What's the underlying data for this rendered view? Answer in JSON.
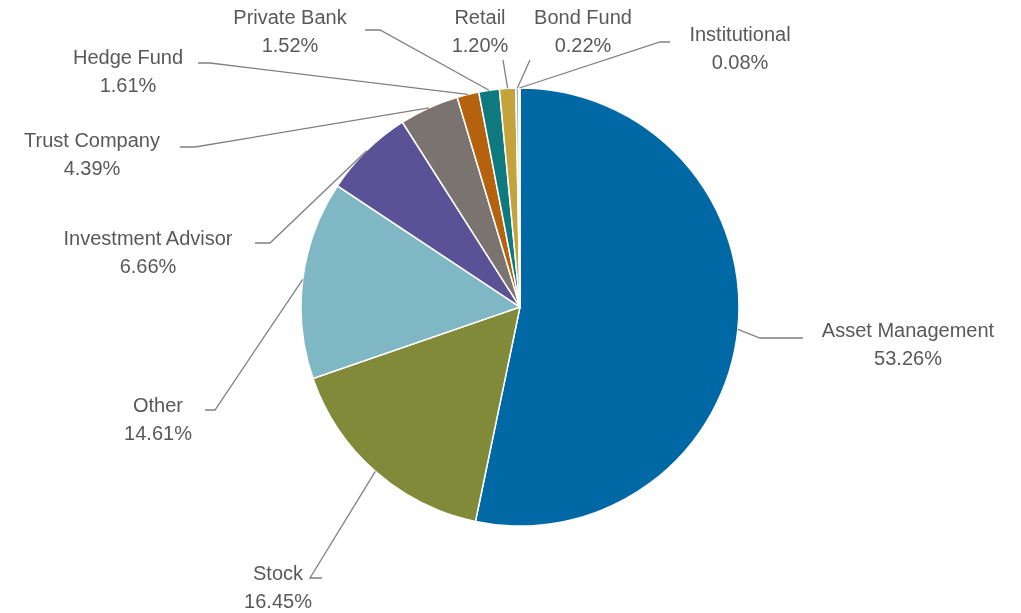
{
  "chart_data": {
    "type": "pie",
    "categories": [
      "Asset Management",
      "Stock",
      "Other",
      "Investment Advisor",
      "Trust Company",
      "Hedge Fund",
      "Private Bank",
      "Retail",
      "Bond Fund",
      "Institutional"
    ],
    "values": [
      53.26,
      16.45,
      14.61,
      6.66,
      4.39,
      1.61,
      1.52,
      1.2,
      0.22,
      0.08
    ],
    "colors": [
      "#0068a5",
      "#808a38",
      "#7fb8c4",
      "#5b5196",
      "#7a7370",
      "#b5620f",
      "#0e7a80",
      "#c4a43a",
      "#9fb3cf",
      "#d9d9d9"
    ],
    "value_labels": [
      "53.26%",
      "16.45%",
      "14.61%",
      "6.66%",
      "4.39%",
      "1.61%",
      "1.52%",
      "1.20%",
      "0.22%",
      "0.08%"
    ],
    "legend": false
  }
}
